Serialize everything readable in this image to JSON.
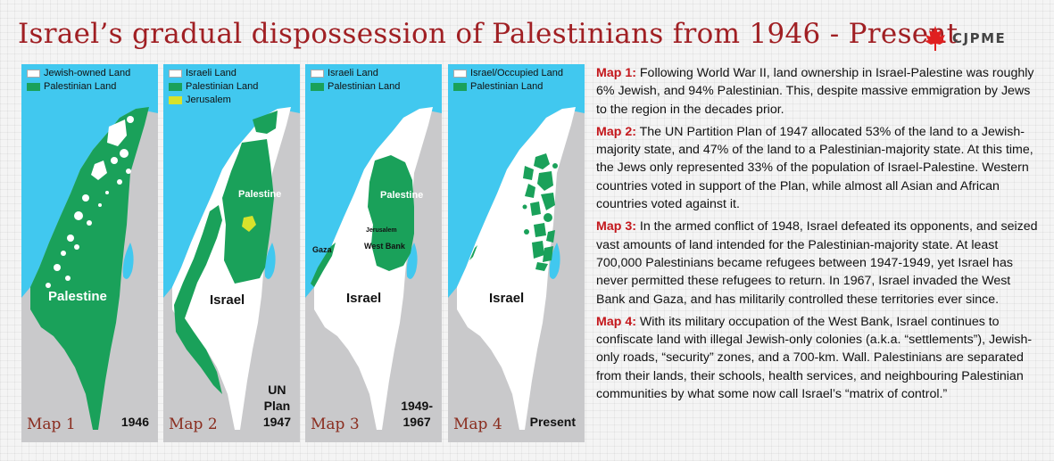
{
  "title": "Israel’s gradual dispossession of Palestinians from 1946 - Present",
  "logo": {
    "text": "CJPME",
    "icon": "maple-leaf-icon"
  },
  "colors": {
    "sea": "#41c8ef",
    "land": "#1aa15a",
    "israel": "#ffffff",
    "neighbours": "#c9c9cb",
    "jerusalem": "#d8e22b",
    "title": "#a01f23",
    "label": "#c4171c"
  },
  "maps": [
    {
      "legend": [
        "Jewish-owned Land",
        "Palestinian Land"
      ],
      "map_label": "Map 1",
      "period": "1946",
      "places": {
        "palestine": "Palestine"
      }
    },
    {
      "legend": [
        "Israeli Land",
        "Palestinian Land",
        "Jerusalem"
      ],
      "map_label": "Map 2",
      "period_lines": [
        "UN",
        "Plan",
        "1947"
      ],
      "places": {
        "palestine": "Palestine",
        "israel": "Israel"
      }
    },
    {
      "legend": [
        "Israeli Land",
        "Palestinian Land"
      ],
      "map_label": "Map 3",
      "period_lines": [
        "1949-",
        "1967"
      ],
      "places": {
        "palestine": "Palestine",
        "jerusalem": "Jerusalem",
        "west_bank": "West Bank",
        "gaza": "Gaza",
        "israel": "Israel"
      }
    },
    {
      "legend": [
        "Israel/Occupied Land",
        "Palestinian Land"
      ],
      "map_label": "Map 4",
      "period": "Present",
      "places": {
        "israel": "Israel"
      }
    }
  ],
  "descriptions": [
    {
      "label": "Map 1:",
      "text": "Following World War II, land ownership in Israel-Palestine was roughly 6% Jewish, and 94% Palestinian.  This, despite massive emmigration by Jews to the region in the decades prior."
    },
    {
      "label": "Map 2:",
      "text": "The UN Partition Plan of 1947 allocated 53% of the land to a Jewish-majority state, and 47% of the land to a Palestinian-majority state.  At this time, the Jews only represented 33% of the population of Israel-Palestine.  Western countries voted in support of the Plan, while almost all Asian and African countries voted against it."
    },
    {
      "label": "Map 3:",
      "text": "In the armed conflict of 1948, Israel defeated its opponents, and seized vast amounts of land intended for the Palestinian-majority state.  At least 700,000 Palestinians became refugees between 1947-1949, yet Israel has never permitted these refugees to return.  In 1967, Israel invaded the West Bank and Gaza, and has militarily controlled these territories ever since."
    },
    {
      "label": "Map 4:",
      "text": "With its military occupation of the West Bank, Israel continues to confiscate land with illegal Jewish-only colonies (a.k.a. “settlements”), Jewish-only roads, “security” zones, and a 700-km. Wall.  Palestinians are separated from their lands, their schools, health services, and neighbouring Palestinian communities by what some now call Israel’s “matrix of control.”"
    }
  ]
}
